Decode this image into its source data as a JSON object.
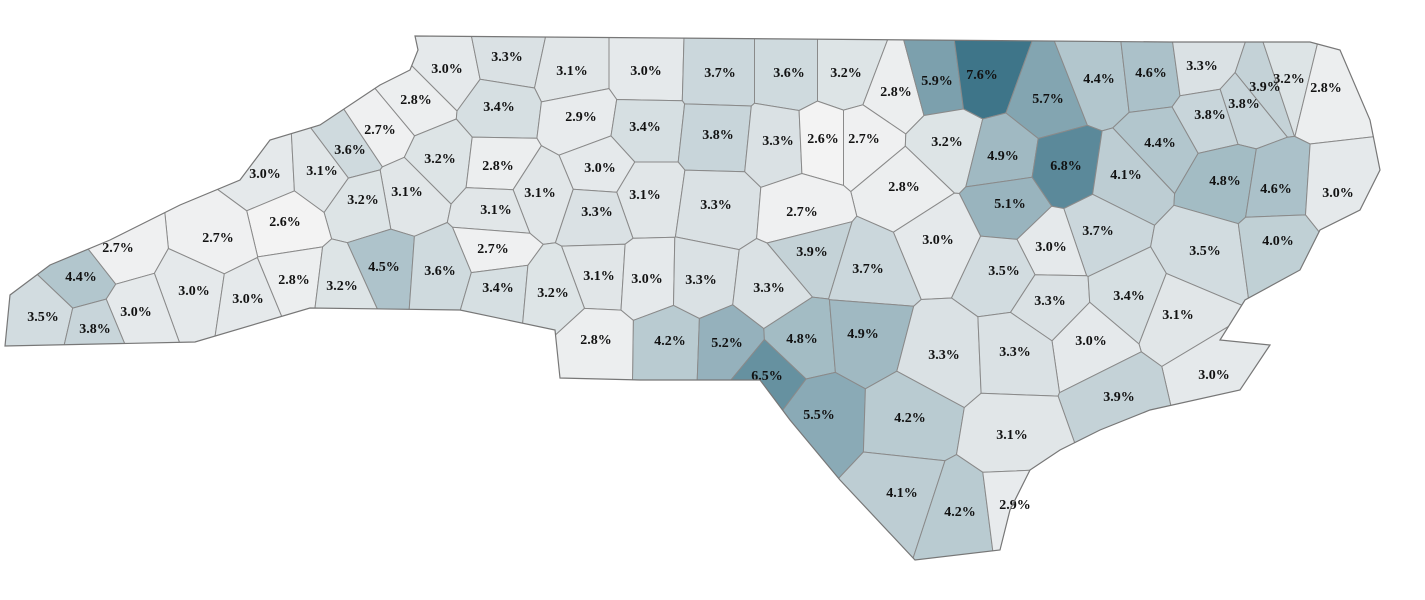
{
  "chart_data": {
    "type": "choropleth",
    "values": [
      3.0,
      3.3,
      3.1,
      3.0,
      3.7,
      3.6,
      3.2,
      2.8,
      5.9,
      7.6,
      5.7,
      4.4,
      4.6,
      3.3,
      3.9,
      3.2,
      2.8,
      3.8,
      3.8,
      2.8,
      3.4,
      2.9,
      3.4,
      3.8,
      3.3,
      2.6,
      2.7,
      3.2,
      4.9,
      6.8,
      4.4,
      2.7,
      3.6,
      3.0,
      3.1,
      3.2,
      2.8,
      3.0,
      3.1,
      3.1,
      3.3,
      2.8,
      4.1,
      4.8,
      4.6,
      3.0,
      3.1,
      3.2,
      3.1,
      3.3,
      2.7,
      5.1,
      3.7,
      2.6,
      2.7,
      2.7,
      2.7,
      3.0,
      3.0,
      3.5,
      4.0,
      3.9,
      3.7,
      4.5,
      3.6,
      3.5,
      4.4,
      3.0,
      3.0,
      2.8,
      3.2,
      3.4,
      3.1,
      3.0,
      3.3,
      3.3,
      3.2,
      3.3,
      3.4,
      3.0,
      3.5,
      3.8,
      3.1,
      4.2,
      5.2,
      4.8,
      4.9,
      2.8,
      3.0,
      3.3,
      3.3,
      6.5,
      3.0,
      3.9,
      5.5,
      4.2,
      3.1,
      4.1,
      4.2,
      2.9
    ],
    "value_labels": [
      "3.0%",
      "3.3%",
      "3.1%",
      "3.0%",
      "3.7%",
      "3.6%",
      "3.2%",
      "2.8%",
      "5.9%",
      "7.6%",
      "5.7%",
      "4.4%",
      "4.6%",
      "3.3%",
      "3.9%",
      "3.2%",
      "2.8%",
      "3.8%",
      "3.8%",
      "2.8%",
      "3.4%",
      "2.9%",
      "3.4%",
      "3.8%",
      "3.3%",
      "2.6%",
      "2.7%",
      "3.2%",
      "4.9%",
      "6.8%",
      "4.4%",
      "2.7%",
      "3.6%",
      "3.0%",
      "3.1%",
      "3.2%",
      "2.8%",
      "3.0%",
      "3.1%",
      "3.1%",
      "3.3%",
      "2.8%",
      "4.1%",
      "4.8%",
      "4.6%",
      "3.0%",
      "3.1%",
      "3.2%",
      "3.1%",
      "3.3%",
      "2.7%",
      "5.1%",
      "3.7%",
      "2.6%",
      "2.7%",
      "2.7%",
      "2.7%",
      "3.0%",
      "3.0%",
      "3.5%",
      "4.0%",
      "3.9%",
      "3.7%",
      "4.5%",
      "3.6%",
      "3.5%",
      "4.4%",
      "3.0%",
      "3.0%",
      "2.8%",
      "3.2%",
      "3.4%",
      "3.1%",
      "3.0%",
      "3.3%",
      "3.3%",
      "3.2%",
      "3.3%",
      "3.4%",
      "3.0%",
      "3.5%",
      "3.8%",
      "3.1%",
      "4.2%",
      "5.2%",
      "4.8%",
      "4.9%",
      "2.8%",
      "3.0%",
      "3.3%",
      "3.3%",
      "6.5%",
      "3.0%",
      "3.9%",
      "5.5%",
      "4.2%",
      "3.1%",
      "4.1%",
      "4.2%",
      "2.9%"
    ],
    "colors": [
      "#f3f3f3",
      "#3e7589"
    ]
  }
}
